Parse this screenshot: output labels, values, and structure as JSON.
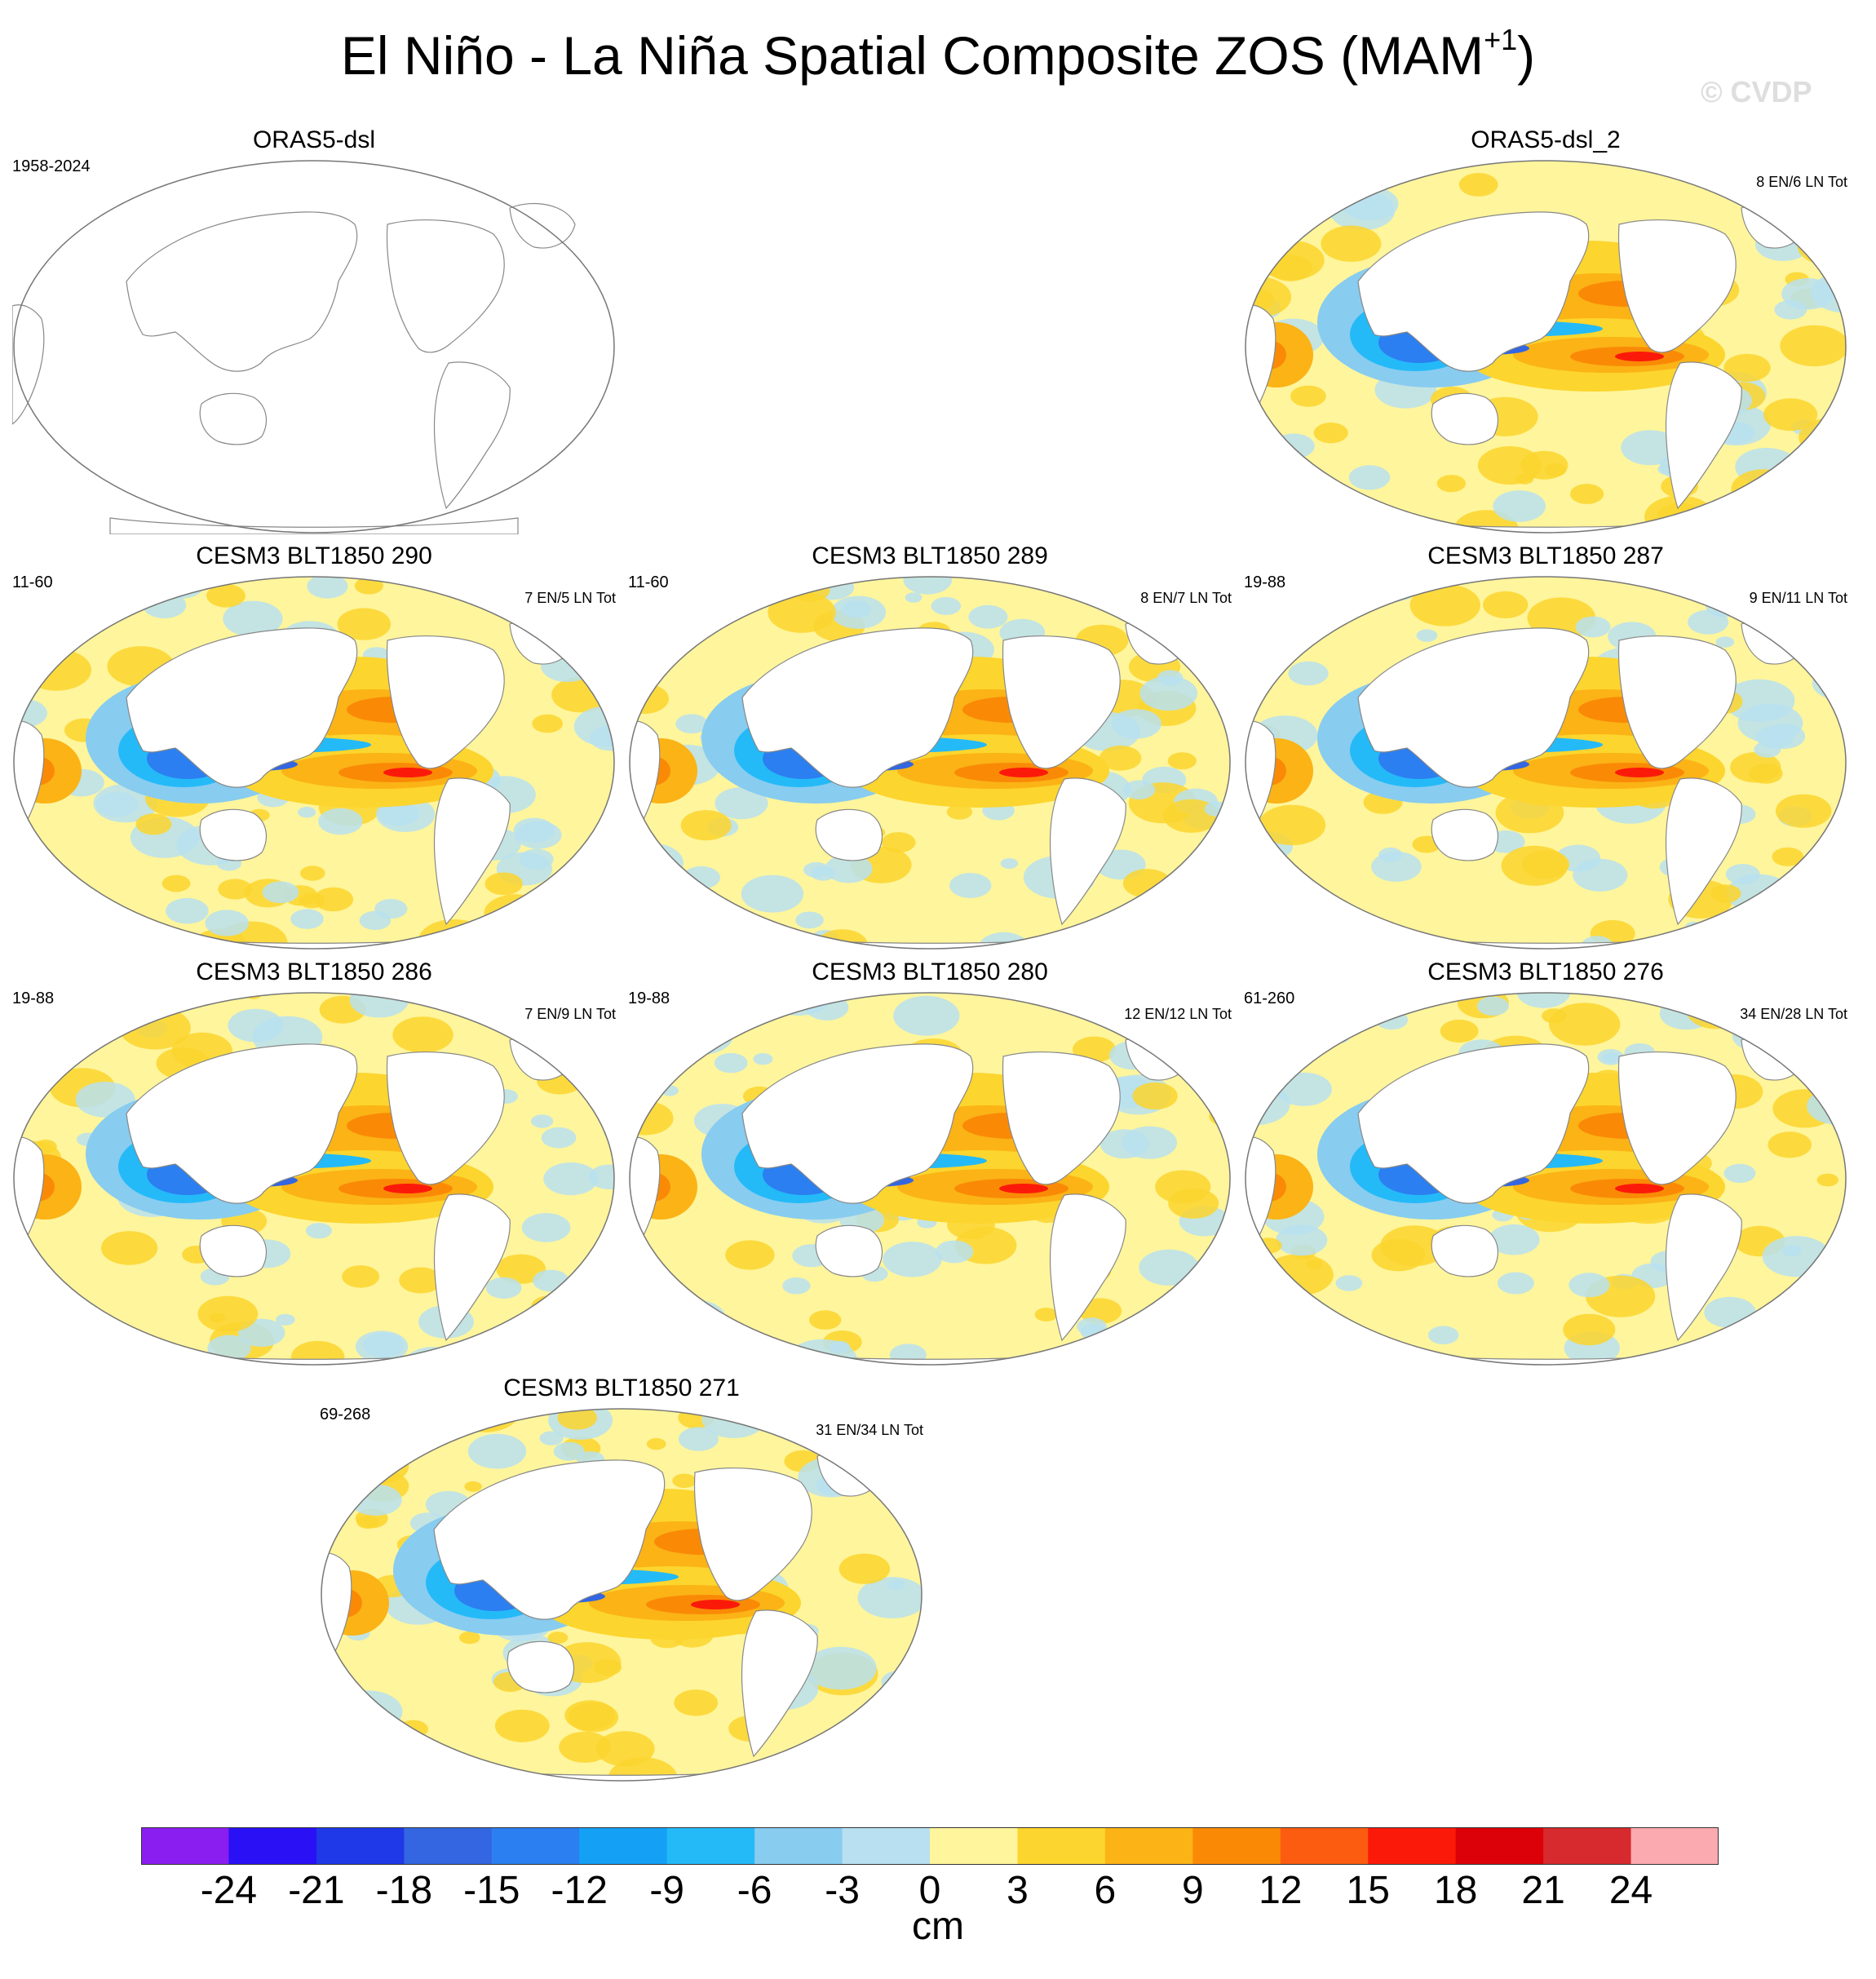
{
  "title_main": "El Niño - La Niña Spatial Composite ZOS (MAM",
  "title_sup": "+1",
  "title_end": ")",
  "watermark": "© CVDP",
  "panels": [
    {
      "title": "ORAS5-dsl",
      "left_label": "1958-2024",
      "right_label": "",
      "filled": false
    },
    {
      "title": "ORAS5-dsl_2",
      "left_label": "",
      "right_label": "8 EN/6 LN Tot",
      "filled": true
    },
    {
      "title": "CESM3 BLT1850 290",
      "left_label": "11-60",
      "right_label": "7 EN/5 LN Tot",
      "filled": true
    },
    {
      "title": "CESM3 BLT1850 289",
      "left_label": "11-60",
      "right_label": "8 EN/7 LN Tot",
      "filled": true
    },
    {
      "title": "CESM3 BLT1850 287",
      "left_label": "19-88",
      "right_label": "9 EN/11 LN Tot",
      "filled": true
    },
    {
      "title": "CESM3 BLT1850 286",
      "left_label": "19-88",
      "right_label": "7 EN/9 LN Tot",
      "filled": true
    },
    {
      "title": "CESM3 BLT1850 280",
      "left_label": "19-88",
      "right_label": "12 EN/12 LN Tot",
      "filled": true
    },
    {
      "title": "CESM3 BLT1850 276",
      "left_label": "61-260",
      "right_label": "34 EN/28 LN Tot",
      "filled": true
    },
    {
      "title": "CESM3 BLT1850 271",
      "left_label": "69-268",
      "right_label": "31 EN/34 LN Tot",
      "filled": true
    }
  ],
  "colorbar": {
    "unit": "cm",
    "ticks": [
      "-24",
      "-21",
      "-18",
      "-15",
      "-12",
      "-9",
      "-6",
      "-3",
      "0",
      "3",
      "6",
      "9",
      "12",
      "15",
      "18",
      "21",
      "24"
    ],
    "colors": [
      "#8a1ef0",
      "#2a10f5",
      "#1f38e8",
      "#3366e0",
      "#2c7ff0",
      "#14a0f5",
      "#24baf8",
      "#88ccf0",
      "#b8e0f0",
      "#fff59c",
      "#fcd52e",
      "#fbb316",
      "#fa8a06",
      "#fb5c10",
      "#fb1a0a",
      "#dc0008",
      "#d62a2e",
      "#fbaab0"
    ]
  },
  "colors": {
    "land": "#ffffff",
    "coast": "#888888",
    "neutral_pos": "#fff59c",
    "neutral_neg": "#b8e0f0"
  }
}
